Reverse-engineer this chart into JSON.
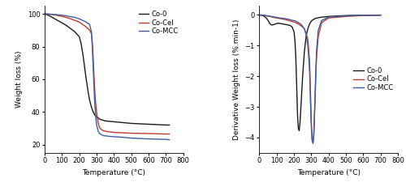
{
  "tga": {
    "Co0": {
      "color": "#1a1a1a",
      "label": "Co-0",
      "x": [
        0,
        25,
        50,
        75,
        100,
        125,
        150,
        175,
        200,
        210,
        220,
        230,
        240,
        250,
        260,
        270,
        280,
        290,
        300,
        320,
        350,
        400,
        450,
        500,
        600,
        700,
        720
      ],
      "y": [
        100,
        99,
        97.5,
        96,
        94.5,
        93,
        91,
        89,
        86,
        82,
        76,
        68,
        60,
        53,
        47,
        43,
        40,
        38,
        37,
        35.5,
        34.5,
        34,
        33.5,
        33,
        32.5,
        32,
        32
      ]
    },
    "CoCel": {
      "color": "#c0392b",
      "label": "Co-Cel",
      "x": [
        0,
        25,
        50,
        75,
        100,
        125,
        150,
        175,
        200,
        220,
        240,
        260,
        270,
        275,
        280,
        285,
        290,
        295,
        300,
        305,
        310,
        315,
        320,
        330,
        340,
        360,
        400,
        500,
        600,
        700,
        720
      ],
      "y": [
        100,
        99.8,
        99.5,
        99,
        98.5,
        97.8,
        97,
        96,
        95,
        93.5,
        92,
        90,
        88,
        83,
        74,
        62,
        52,
        45,
        40,
        36,
        33,
        31,
        30,
        29,
        28.5,
        28,
        27.5,
        27,
        26.8,
        26.5,
        26.5
      ]
    },
    "CoMCC": {
      "color": "#3b5fa0",
      "label": "Co-MCC",
      "x": [
        0,
        25,
        50,
        75,
        100,
        125,
        150,
        175,
        200,
        220,
        240,
        260,
        270,
        275,
        280,
        285,
        290,
        295,
        300,
        310,
        320,
        340,
        380,
        450,
        500,
        600,
        700,
        720
      ],
      "y": [
        100,
        99.9,
        99.7,
        99.5,
        99.2,
        98.8,
        98.3,
        97.8,
        97,
        96,
        95,
        93.5,
        89,
        80,
        68,
        55,
        44,
        37,
        32,
        28,
        26.5,
        25.5,
        25,
        24.5,
        24,
        23.5,
        23.2,
        23
      ]
    }
  },
  "dtg": {
    "Co0": {
      "color": "#1a1a1a",
      "label": "Co-0",
      "x": [
        0,
        20,
        40,
        50,
        60,
        70,
        80,
        90,
        100,
        110,
        120,
        140,
        160,
        180,
        190,
        200,
        205,
        210,
        215,
        220,
        225,
        230,
        235,
        240,
        250,
        260,
        270,
        280,
        290,
        300,
        320,
        350,
        400,
        500,
        600,
        700
      ],
      "y": [
        0,
        -0.02,
        -0.1,
        -0.18,
        -0.28,
        -0.33,
        -0.32,
        -0.3,
        -0.28,
        -0.27,
        -0.28,
        -0.3,
        -0.32,
        -0.35,
        -0.4,
        -0.55,
        -0.8,
        -1.3,
        -2.2,
        -3.2,
        -3.7,
        -3.78,
        -3.5,
        -3.0,
        -2.0,
        -1.2,
        -0.7,
        -0.45,
        -0.3,
        -0.2,
        -0.12,
        -0.08,
        -0.05,
        -0.02,
        -0.01,
        -0.005
      ]
    },
    "CoCel": {
      "color": "#c0392b",
      "label": "Co-Cel",
      "x": [
        0,
        20,
        40,
        60,
        80,
        100,
        120,
        150,
        180,
        210,
        240,
        260,
        270,
        280,
        290,
        295,
        300,
        305,
        310,
        315,
        320,
        325,
        330,
        340,
        360,
        400,
        500,
        600,
        700
      ],
      "y": [
        0,
        -0.01,
        -0.03,
        -0.05,
        -0.08,
        -0.1,
        -0.12,
        -0.15,
        -0.2,
        -0.25,
        -0.35,
        -0.45,
        -0.6,
        -0.8,
        -1.5,
        -2.5,
        -3.5,
        -4.1,
        -4.15,
        -3.8,
        -3.0,
        -2.2,
        -1.4,
        -0.7,
        -0.25,
        -0.1,
        -0.05,
        -0.02,
        -0.01
      ]
    },
    "CoMCC": {
      "color": "#3b5fa0",
      "label": "Co-MCC",
      "x": [
        0,
        20,
        40,
        60,
        80,
        100,
        120,
        150,
        180,
        210,
        240,
        260,
        270,
        280,
        290,
        295,
        300,
        305,
        310,
        315,
        320,
        325,
        330,
        340,
        360,
        400,
        500,
        600,
        700
      ],
      "y": [
        0,
        -0.005,
        -0.02,
        -0.04,
        -0.06,
        -0.08,
        -0.1,
        -0.12,
        -0.16,
        -0.2,
        -0.3,
        -0.45,
        -0.65,
        -1.0,
        -1.8,
        -2.8,
        -3.6,
        -4.1,
        -4.2,
        -3.9,
        -3.0,
        -2.0,
        -1.2,
        -0.5,
        -0.18,
        -0.07,
        -0.03,
        -0.01,
        -0.005
      ]
    }
  },
  "tga_xlim": [
    0,
    800
  ],
  "tga_ylim": [
    15,
    105
  ],
  "tga_yticks": [
    20,
    40,
    60,
    80,
    100
  ],
  "tga_xticks": [
    0,
    100,
    200,
    300,
    400,
    500,
    600,
    700,
    800
  ],
  "dtg_xlim": [
    0,
    800
  ],
  "dtg_ylim": [
    -4.5,
    0.3
  ],
  "dtg_yticks": [
    0,
    -1,
    -2,
    -3,
    -4
  ],
  "dtg_xticks": [
    0,
    100,
    200,
    300,
    400,
    500,
    600,
    700,
    800
  ],
  "xlabel": "Temperature (°C)",
  "tga_ylabel": "Weight loss (%)",
  "dtg_ylabel": "Derivative Weight loss (%.min-1)",
  "bg_color": "#ffffff",
  "linewidth": 1.0
}
